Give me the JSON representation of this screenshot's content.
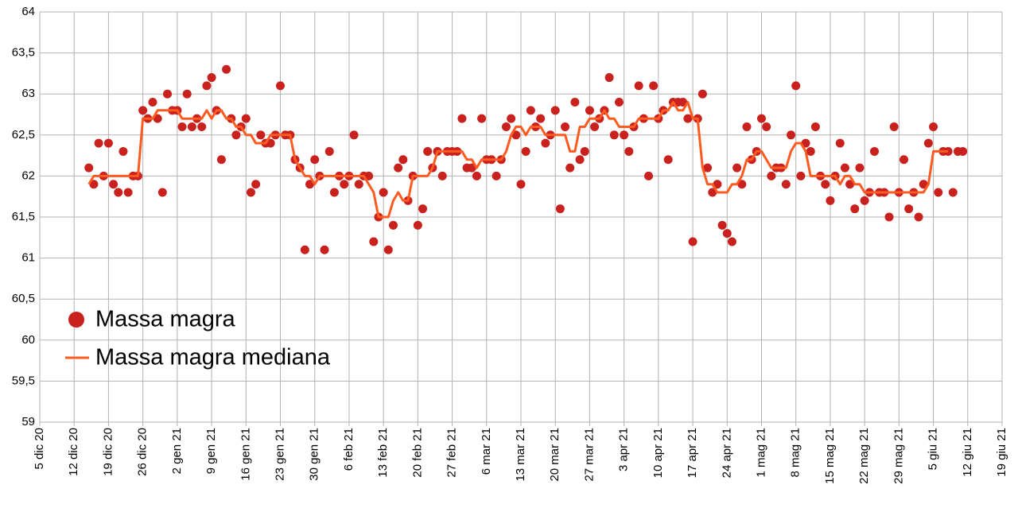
{
  "chart_data": {
    "type": "scatter",
    "x": [
      10,
      11,
      12,
      13,
      14,
      15,
      16,
      17,
      18,
      19,
      20,
      21,
      22,
      23,
      24,
      25,
      26,
      27,
      28,
      29,
      30,
      31,
      32,
      33,
      34,
      35,
      36,
      37,
      38,
      39,
      40,
      41,
      42,
      43,
      44,
      45,
      46,
      47,
      48,
      49,
      50,
      51,
      52,
      53,
      54,
      55,
      56,
      57,
      58,
      59,
      60,
      61,
      62,
      63,
      64,
      65,
      66,
      67,
      68,
      69,
      70,
      71,
      72,
      73,
      74,
      75,
      76,
      77,
      78,
      79,
      80,
      81,
      82,
      83,
      84,
      85,
      86,
      87,
      88,
      89,
      90,
      91,
      92,
      93,
      94,
      95,
      96,
      97,
      98,
      99,
      100,
      101,
      102,
      103,
      104,
      105,
      106,
      107,
      108,
      109,
      110,
      111,
      112,
      113,
      114,
      115,
      116,
      117,
      118,
      119,
      120,
      121,
      122,
      123,
      124,
      125,
      126,
      127,
      128,
      129,
      130,
      131,
      132,
      133,
      134,
      135,
      136,
      137,
      138,
      139,
      140,
      141,
      142,
      143,
      144,
      145,
      146,
      147,
      148,
      149,
      150,
      151,
      152,
      153,
      154,
      155,
      156,
      157,
      158,
      159,
      160,
      161,
      162,
      163,
      164,
      165,
      166,
      167,
      168,
      169,
      170,
      171,
      172,
      173,
      174,
      175,
      176,
      177,
      178,
      179,
      180,
      181,
      182,
      183,
      184,
      185,
      186,
      187,
      188
    ],
    "series": [
      {
        "name": "Massa magra",
        "type": "scatter",
        "color": "#c9211e",
        "values": [
          62.1,
          61.9,
          62.4,
          62.0,
          62.4,
          61.9,
          61.8,
          62.3,
          61.8,
          62.0,
          62.0,
          62.8,
          62.7,
          62.9,
          62.7,
          61.8,
          63.0,
          62.8,
          62.8,
          62.6,
          63.0,
          62.6,
          62.7,
          62.6,
          63.1,
          63.2,
          62.8,
          62.2,
          63.3,
          62.7,
          62.5,
          62.6,
          62.7,
          61.8,
          61.9,
          62.5,
          62.4,
          62.4,
          62.5,
          63.1,
          62.5,
          62.5,
          62.2,
          62.1,
          61.1,
          61.9,
          62.2,
          62.0,
          61.1,
          62.3,
          61.8,
          62.0,
          61.9,
          62.0,
          62.5,
          61.9,
          62.0,
          62.0,
          61.2,
          61.5,
          61.8,
          61.1,
          61.4,
          62.1,
          62.2,
          61.7,
          62.0,
          61.4,
          61.6,
          62.3,
          62.1,
          62.3,
          62.0,
          62.3,
          62.3,
          62.3,
          62.7,
          62.1,
          62.1,
          62.0,
          62.7,
          62.2,
          62.2,
          62.0,
          62.2,
          62.6,
          62.7,
          62.5,
          61.9,
          62.3,
          62.8,
          62.6,
          62.7,
          62.4,
          62.5,
          62.8,
          61.6,
          62.6,
          62.1,
          62.9,
          62.2,
          62.3,
          62.8,
          62.6,
          62.7,
          62.8,
          63.2,
          62.5,
          62.9,
          62.5,
          62.3,
          62.6,
          63.1,
          62.7,
          62.0,
          63.1,
          62.7,
          62.8,
          62.2,
          62.9,
          62.9,
          62.9,
          62.7,
          61.2,
          62.7,
          63.0,
          62.1,
          61.8,
          61.9,
          61.4,
          61.3,
          61.2,
          62.1,
          61.9,
          62.6,
          62.2,
          62.3,
          62.7,
          62.6,
          62.0,
          62.1,
          62.1,
          61.9,
          62.5,
          63.1,
          62.0,
          62.4,
          62.3,
          62.6,
          62.0,
          61.9,
          61.7,
          62.0,
          62.4,
          62.1,
          61.9,
          61.6,
          62.1,
          61.7,
          61.8,
          62.3,
          61.8,
          61.8,
          61.5,
          62.6,
          61.8,
          62.2,
          61.6,
          61.8,
          61.5,
          61.9,
          62.4,
          62.6,
          61.8,
          62.3,
          62.3,
          61.8,
          62.3,
          62.3
        ]
      },
      {
        "name": "Massa magra mediana",
        "type": "line",
        "color": "#ff5a1f",
        "values": [
          61.9,
          62.0,
          62.0,
          62.0,
          62.0,
          62.0,
          62.0,
          62.0,
          62.0,
          62.0,
          62.0,
          62.7,
          62.7,
          62.7,
          62.8,
          62.8,
          62.8,
          62.8,
          62.8,
          62.7,
          62.7,
          62.7,
          62.7,
          62.7,
          62.8,
          62.7,
          62.8,
          62.8,
          62.7,
          62.7,
          62.6,
          62.6,
          62.5,
          62.5,
          62.4,
          62.4,
          62.4,
          62.5,
          62.5,
          62.5,
          62.5,
          62.5,
          62.2,
          62.1,
          62.0,
          62.0,
          61.9,
          62.0,
          62.0,
          62.0,
          62.0,
          62.0,
          62.0,
          62.0,
          62.0,
          62.0,
          62.0,
          61.9,
          61.8,
          61.5,
          61.5,
          61.5,
          61.7,
          61.8,
          61.7,
          61.7,
          62.0,
          62.0,
          62.0,
          62.0,
          62.1,
          62.3,
          62.3,
          62.3,
          62.3,
          62.3,
          62.3,
          62.2,
          62.2,
          62.1,
          62.2,
          62.2,
          62.2,
          62.2,
          62.2,
          62.3,
          62.5,
          62.6,
          62.6,
          62.5,
          62.6,
          62.6,
          62.6,
          62.5,
          62.5,
          62.5,
          62.5,
          62.5,
          62.3,
          62.3,
          62.6,
          62.6,
          62.7,
          62.7,
          62.7,
          62.8,
          62.7,
          62.7,
          62.6,
          62.6,
          62.6,
          62.6,
          62.7,
          62.7,
          62.7,
          62.7,
          62.7,
          62.8,
          62.8,
          62.9,
          62.8,
          62.8,
          62.9,
          62.7,
          62.7,
          62.1,
          61.9,
          61.9,
          61.8,
          61.8,
          61.8,
          61.9,
          61.9,
          62.0,
          62.2,
          62.2,
          62.3,
          62.3,
          62.2,
          62.1,
          62.1,
          62.1,
          62.1,
          62.3,
          62.4,
          62.4,
          62.3,
          62.0,
          62.0,
          62.0,
          62.0,
          62.0,
          62.0,
          61.9,
          62.0,
          62.0,
          61.9,
          61.9,
          61.8,
          61.8,
          61.8,
          61.8,
          61.8,
          61.8,
          61.8,
          61.8,
          61.8,
          61.8,
          61.8,
          61.8,
          61.8,
          61.9,
          62.3,
          62.3,
          62.3,
          62.3,
          null,
          null,
          null
        ]
      }
    ],
    "xlim": [
      0,
      196
    ],
    "xticks": [
      {
        "value": 0,
        "label": "5 dic 20"
      },
      {
        "value": 7,
        "label": "12 dic 20"
      },
      {
        "value": 14,
        "label": "19 dic 20"
      },
      {
        "value": 21,
        "label": "26 dic 20"
      },
      {
        "value": 28,
        "label": "2 gen 21"
      },
      {
        "value": 35,
        "label": "9 gen 21"
      },
      {
        "value": 42,
        "label": "16 gen 21"
      },
      {
        "value": 49,
        "label": "23 gen 21"
      },
      {
        "value": 56,
        "label": "30 gen 21"
      },
      {
        "value": 63,
        "label": "6 feb 21"
      },
      {
        "value": 70,
        "label": "13 feb 21"
      },
      {
        "value": 77,
        "label": "20 feb 21"
      },
      {
        "value": 84,
        "label": "27 feb 21"
      },
      {
        "value": 91,
        "label": "6 mar 21"
      },
      {
        "value": 98,
        "label": "13 mar 21"
      },
      {
        "value": 105,
        "label": "20 mar 21"
      },
      {
        "value": 112,
        "label": "27 mar 21"
      },
      {
        "value": 119,
        "label": "3 apr 21"
      },
      {
        "value": 126,
        "label": "10 apr 21"
      },
      {
        "value": 133,
        "label": "17 apr 21"
      },
      {
        "value": 140,
        "label": "24 apr 21"
      },
      {
        "value": 147,
        "label": "1 mag 21"
      },
      {
        "value": 154,
        "label": "8 mag 21"
      },
      {
        "value": 161,
        "label": "15 mag 21"
      },
      {
        "value": 168,
        "label": "22 mag 21"
      },
      {
        "value": 175,
        "label": "29 mag 21"
      },
      {
        "value": 182,
        "label": "5 giu 21"
      },
      {
        "value": 189,
        "label": "12 giu 21"
      },
      {
        "value": 196,
        "label": "19 giu 21"
      }
    ],
    "ylim": [
      59,
      64
    ],
    "yticks": [
      59,
      {
        "value": 59.5,
        "label": "59,5"
      },
      60,
      {
        "value": 60.5,
        "label": "60,5"
      },
      61,
      {
        "value": 61.5,
        "label": "61,5"
      },
      62,
      {
        "value": 62.5,
        "label": "62,5"
      },
      63,
      {
        "value": 63.5,
        "label": "63,5"
      },
      64
    ],
    "grid": true,
    "legend": "bottom-left"
  }
}
